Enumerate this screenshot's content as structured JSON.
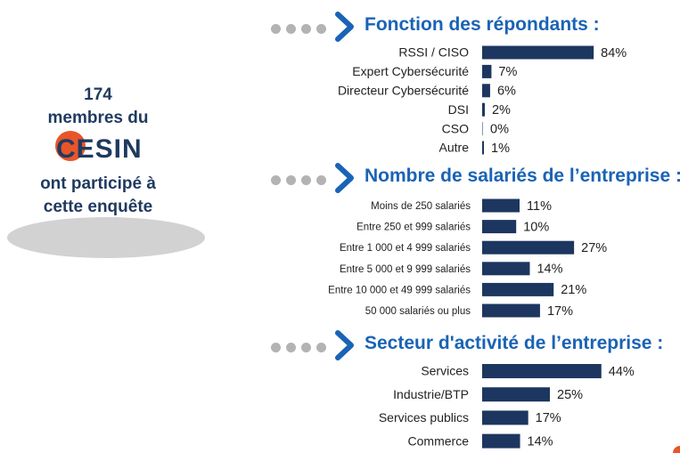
{
  "intro": {
    "count": "174",
    "line1": "membres du",
    "logo_text": "CESIN",
    "line2": "ont participé à",
    "line3": "cette enquête"
  },
  "colors": {
    "bar": "#1c3660",
    "title": "#1a63b5",
    "chevron": "#1a63b5",
    "dot": "#b3b3b3",
    "logo_accent": "#e8552b",
    "intro": "#1f3a5f"
  },
  "chart_data": [
    {
      "type": "bar",
      "orientation": "horizontal",
      "title": "Fonction des répondants :",
      "categories": [
        "RSSI / CISO",
        "Expert Cybersécurité",
        "Directeur Cybersécurité",
        "DSI",
        "CSO",
        "Autre"
      ],
      "values": [
        84,
        7,
        6,
        2,
        0,
        1
      ],
      "value_labels": [
        "84%",
        "7%",
        "6%",
        "2%",
        "0%",
        "1%"
      ],
      "unit": "%",
      "xlim": [
        0,
        100
      ]
    },
    {
      "type": "bar",
      "orientation": "horizontal",
      "title": "Nombre de salariés de l’entreprise :",
      "categories": [
        "Moins de 250 salariés",
        "Entre 250 et 999 salariés",
        "Entre 1 000 et 4 999 salariés",
        "Entre 5 000 et 9 999 salariés",
        "Entre 10 000 et 49 999 salariés",
        "50 000 salariés ou plus"
      ],
      "values": [
        11,
        10,
        27,
        14,
        21,
        17
      ],
      "value_labels": [
        "11%",
        "10%",
        "27%",
        "14%",
        "21%",
        "17%"
      ],
      "unit": "%",
      "xlim": [
        0,
        100
      ]
    },
    {
      "type": "bar",
      "orientation": "horizontal",
      "title": "Secteur d'activité de l’entreprise :",
      "categories": [
        "Services",
        "Industrie/BTP",
        "Services publics",
        "Commerce"
      ],
      "values": [
        44,
        25,
        17,
        14
      ],
      "value_labels": [
        "44%",
        "25%",
        "17%",
        "14%"
      ],
      "unit": "%",
      "xlim": [
        0,
        100
      ]
    }
  ]
}
